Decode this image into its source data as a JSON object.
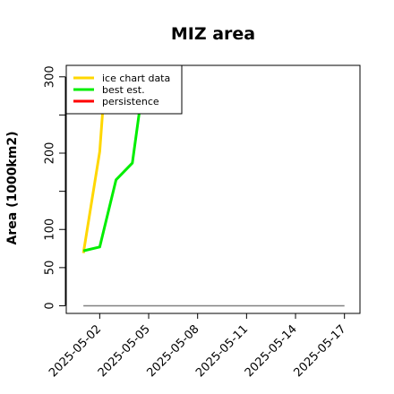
{
  "chart_data": {
    "type": "line",
    "title": "MIZ area",
    "xlabel": "",
    "ylabel": "Area (1000km2)",
    "x_ticks": [
      "2025-05-02",
      "2025-05-05",
      "2025-05-08",
      "2025-05-11",
      "2025-05-14",
      "2025-05-17"
    ],
    "xlim": [
      "2025-05-00",
      "2025-05-18"
    ],
    "ylim": [
      -10,
      315
    ],
    "y_ticks": [
      0,
      50,
      100,
      150,
      200,
      250,
      300
    ],
    "y_tick_labels": [
      "0",
      "50",
      "100",
      "",
      "200",
      "",
      "300"
    ],
    "grid": false,
    "legend": {
      "placement": "top-left",
      "entries": [
        "ice chart data",
        "best est.",
        "persistence"
      ]
    },
    "series": [
      {
        "name": "ice chart data",
        "color": "#ffd700",
        "points": [
          {
            "x": "2025-05-01",
            "y": 69
          },
          {
            "x": "2025-05-02",
            "y": 202
          },
          {
            "x": "2025-05-02.2",
            "y": 260
          }
        ]
      },
      {
        "name": "best est.",
        "color": "#00ee00",
        "points": [
          {
            "x": "2025-05-01",
            "y": 72
          },
          {
            "x": "2025-05-02",
            "y": 77
          },
          {
            "x": "2025-05-03",
            "y": 165
          },
          {
            "x": "2025-05-04",
            "y": 187
          },
          {
            "x": "2025-05-04.5",
            "y": 265
          }
        ]
      },
      {
        "name": "persistence",
        "color": "#ff0000",
        "points": []
      },
      {
        "name": "",
        "color": "#808080",
        "points": [
          {
            "x": "2025-05-01",
            "y": 0
          },
          {
            "x": "2025-05-17",
            "y": 0
          }
        ]
      }
    ]
  }
}
